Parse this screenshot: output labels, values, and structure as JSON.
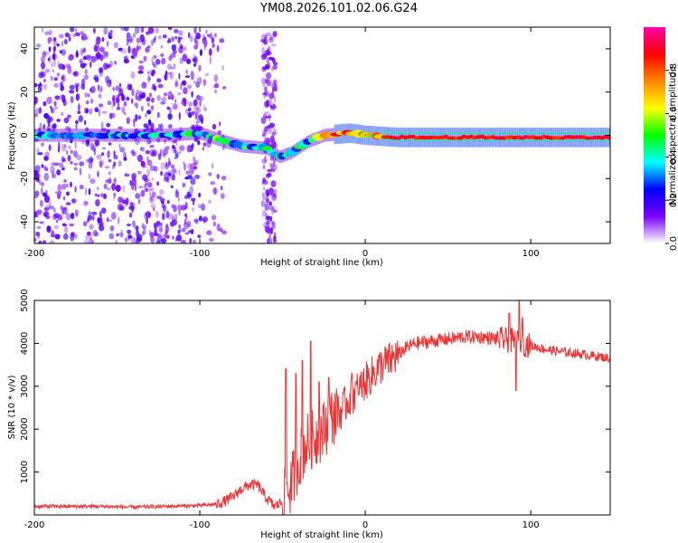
{
  "title": "YM08.2026.101.02.06.G24",
  "chart_data": [
    {
      "type": "heatmap",
      "xlabel": "Height of straight line (km)",
      "ylabel": "Frequency (Hz)",
      "xlim": [
        -200,
        148
      ],
      "ylim": [
        -50,
        50
      ],
      "xticks": [
        -200,
        -100,
        0,
        100
      ],
      "yticks": [
        -40,
        -20,
        0,
        20,
        40
      ],
      "colorbar": {
        "label": "Normalized spectral amplitude",
        "ticks": [
          "0.0",
          "0.2",
          "0.4",
          "0.6",
          "0.8"
        ],
        "range": [
          0,
          1
        ],
        "colors": [
          "#ffffff",
          "#7a00ff",
          "#0000ff",
          "#00ffff",
          "#00ff00",
          "#ffff00",
          "#ff8800",
          "#ff0000",
          "#ff00aa"
        ]
      },
      "ridge": [
        {
          "x": -200,
          "f": 0
        },
        {
          "x": -120,
          "f": 0
        },
        {
          "x": -100,
          "f": 1
        },
        {
          "x": -85,
          "f": -3
        },
        {
          "x": -75,
          "f": -5
        },
        {
          "x": -60,
          "f": -6
        },
        {
          "x": -52,
          "f": -10
        },
        {
          "x": -45,
          "f": -8
        },
        {
          "x": -35,
          "f": -3
        },
        {
          "x": -25,
          "f": 0
        },
        {
          "x": -10,
          "f": 1
        },
        {
          "x": 0,
          "f": 0
        },
        {
          "x": 20,
          "f": -1
        },
        {
          "x": 80,
          "f": -1
        },
        {
          "x": 148,
          "f": -1
        }
      ]
    },
    {
      "type": "line",
      "xlabel": "Height of straight line (km)",
      "ylabel": "SNR (10 * v/v)",
      "xlim": [
        -200,
        148
      ],
      "ylim": [
        0,
        5000
      ],
      "xticks": [
        -200,
        -100,
        0,
        100
      ],
      "yticks": [
        1000,
        2000,
        3000,
        4000,
        5000
      ],
      "series": [
        {
          "name": "SNR",
          "color": "#ee3333",
          "points": [
            [
              -200,
              200
            ],
            [
              -180,
              200
            ],
            [
              -160,
              200
            ],
            [
              -140,
              180
            ],
            [
              -120,
              200
            ],
            [
              -100,
              220
            ],
            [
              -90,
              250
            ],
            [
              -85,
              320
            ],
            [
              -80,
              420
            ],
            [
              -75,
              600
            ],
            [
              -70,
              700
            ],
            [
              -65,
              700
            ],
            [
              -60,
              400
            ],
            [
              -55,
              200
            ],
            [
              -50,
              300
            ],
            [
              -45,
              700
            ],
            [
              -40,
              1300
            ],
            [
              -35,
              1700
            ],
            [
              -30,
              1800
            ],
            [
              -25,
              2000
            ],
            [
              -20,
              2300
            ],
            [
              -15,
              2400
            ],
            [
              -10,
              2700
            ],
            [
              -5,
              2900
            ],
            [
              0,
              3100
            ],
            [
              5,
              3300
            ],
            [
              10,
              3500
            ],
            [
              15,
              3600
            ],
            [
              20,
              3750
            ],
            [
              25,
              3900
            ],
            [
              30,
              4000
            ],
            [
              40,
              4050
            ],
            [
              50,
              4100
            ],
            [
              60,
              4150
            ],
            [
              70,
              4150
            ],
            [
              80,
              4100
            ],
            [
              90,
              4050
            ],
            [
              100,
              3950
            ],
            [
              110,
              3850
            ],
            [
              120,
              3800
            ],
            [
              130,
              3750
            ],
            [
              140,
              3700
            ],
            [
              148,
              3650
            ]
          ],
          "spikes": [
            [
              -48,
              3400
            ],
            [
              -42,
              3300
            ],
            [
              -38,
              3600
            ],
            [
              -33,
              4050
            ],
            [
              -28,
              3100
            ],
            [
              -22,
              3200
            ],
            [
              -17,
              2800
            ],
            [
              -8,
              3300
            ],
            [
              -4,
              2800
            ],
            [
              87,
              4700
            ],
            [
              93,
              5000
            ],
            [
              95,
              4600
            ],
            [
              91,
              2900
            ]
          ]
        }
      ]
    }
  ]
}
